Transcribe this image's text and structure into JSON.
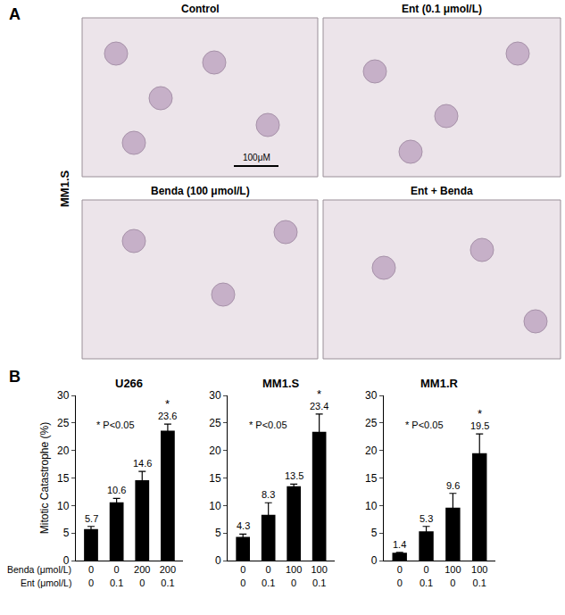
{
  "panel_labels": [
    "A",
    "B"
  ],
  "micrographs": {
    "row_label": "MM1.S",
    "scale_bar": "100μM",
    "titles": [
      "Control",
      "Ent (0.1 μmol/L)",
      "Benda (100 μmol/L)",
      "Ent + Benda"
    ]
  },
  "condition_labels": [
    "Benda (μmol/L)",
    "Ent (μmol/L)"
  ],
  "chart_data": [
    {
      "type": "bar",
      "title": "U266",
      "ylabel": "Mitotic Catastrophe (%)",
      "conditions": [
        [
          0,
          0,
          200,
          200
        ],
        [
          0,
          0.1,
          0,
          0.1
        ]
      ],
      "values": [
        5.7,
        10.6,
        14.6,
        23.6
      ],
      "errors": [
        0.5,
        0.7,
        1.6,
        1.2
      ],
      "color": "#000000",
      "ylim": [
        0,
        30
      ],
      "yticks": [
        0,
        5,
        10,
        15,
        20,
        25,
        30
      ],
      "grid": false,
      "data_labels": true,
      "significance": {
        "text": "*",
        "bars": [
          3
        ]
      },
      "note": "* P<0.05"
    },
    {
      "type": "bar",
      "title": "MM1.S",
      "conditions": [
        [
          0,
          0,
          100,
          100
        ],
        [
          0,
          0.1,
          0,
          0.1
        ]
      ],
      "values": [
        4.3,
        8.3,
        13.5,
        23.4
      ],
      "errors": [
        0.5,
        2.2,
        0.4,
        3.2
      ],
      "color": "#000000",
      "ylim": [
        0,
        30
      ],
      "yticks": [
        0,
        5,
        10,
        15,
        20,
        25,
        30
      ],
      "grid": false,
      "data_labels": true,
      "significance": {
        "text": "*",
        "bars": [
          3
        ]
      },
      "note": "* P<0.05"
    },
    {
      "type": "bar",
      "title": "MM1.R",
      "conditions": [
        [
          0,
          0,
          100,
          100
        ],
        [
          0,
          0.1,
          0,
          0.1
        ]
      ],
      "values": [
        1.4,
        5.3,
        9.6,
        19.5
      ],
      "errors": [
        0.1,
        0.9,
        2.6,
        3.5
      ],
      "color": "#000000",
      "ylim": [
        0,
        30
      ],
      "yticks": [
        0,
        5,
        10,
        15,
        20,
        25,
        30
      ],
      "grid": false,
      "data_labels": true,
      "significance": {
        "text": "*",
        "bars": [
          3
        ]
      },
      "note": "* P<0.05"
    }
  ]
}
